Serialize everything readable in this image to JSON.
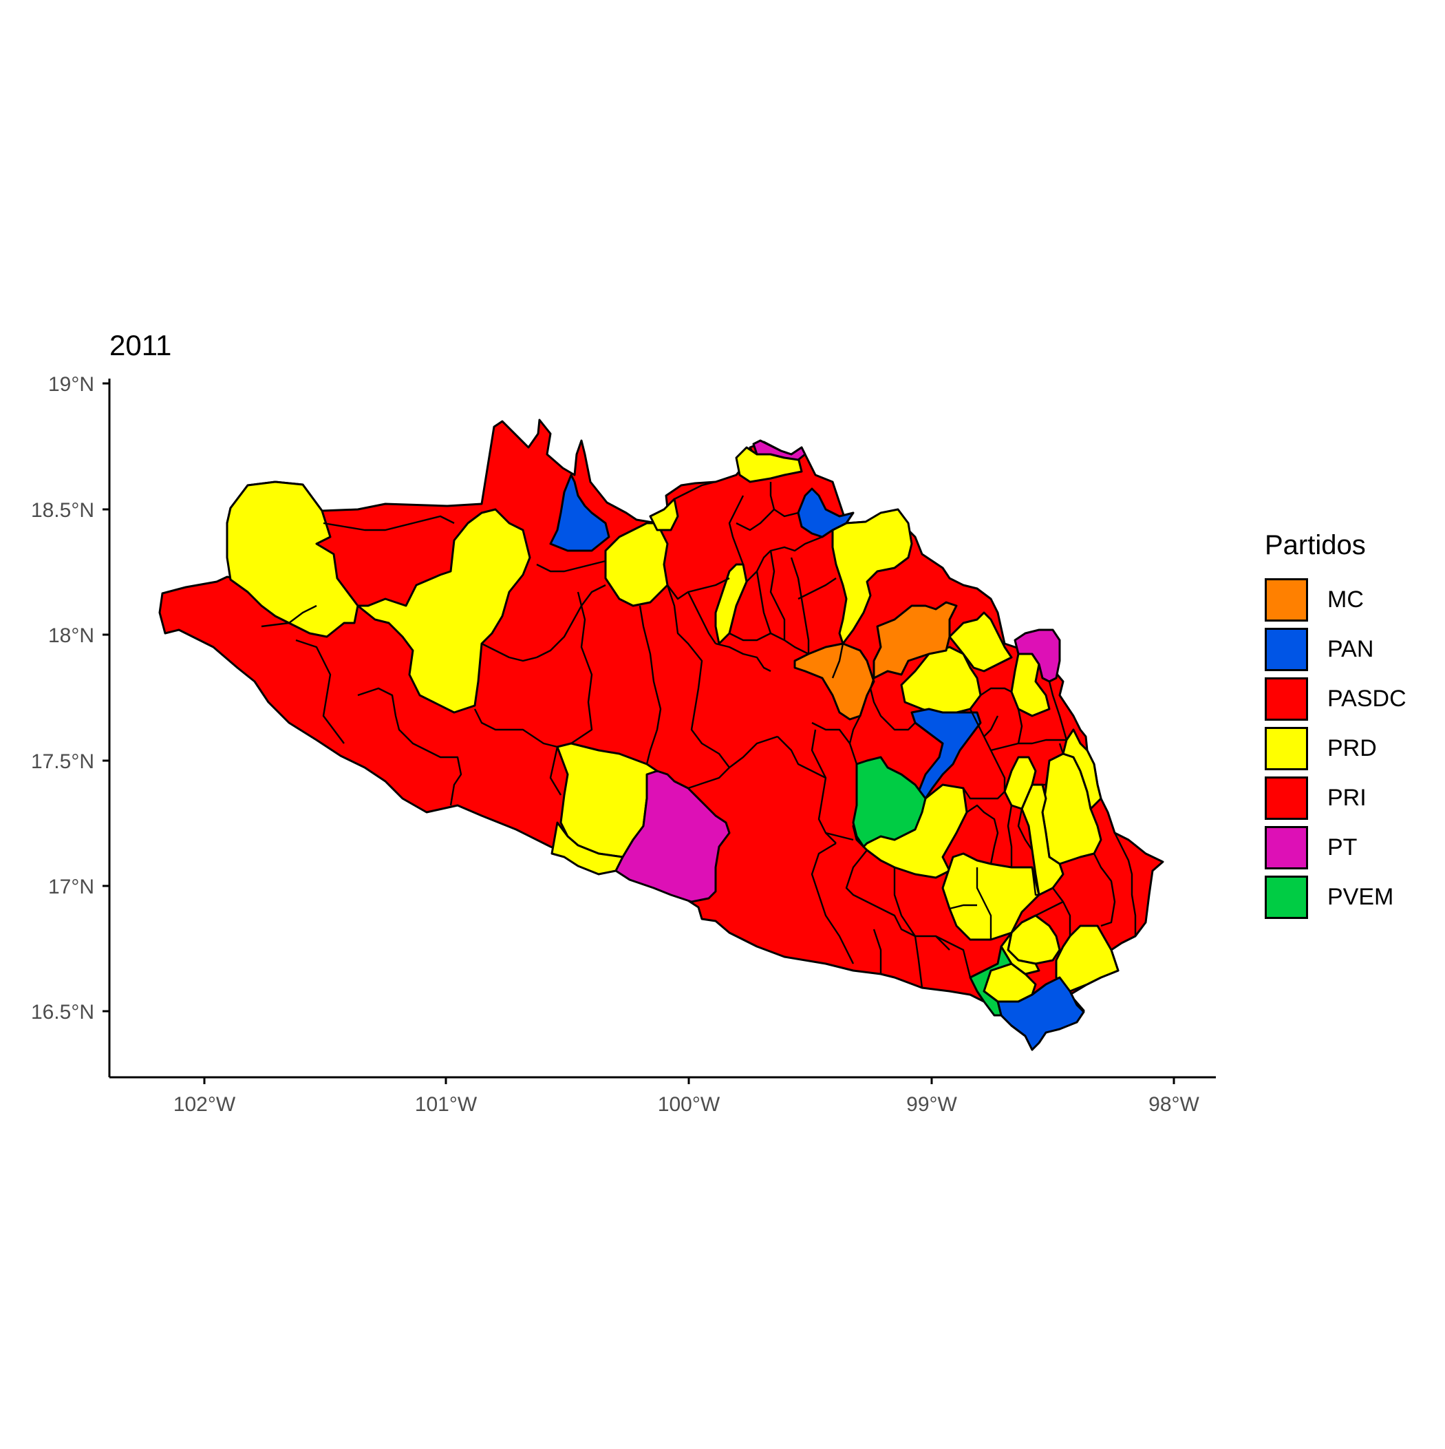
{
  "title": "2011",
  "axes": {
    "x_ticks": [
      "102°W",
      "101°W",
      "100°W",
      "99°W",
      "98°W"
    ],
    "y_ticks": [
      "19°N",
      "18.5°N",
      "18°N",
      "17.5°N",
      "17°N",
      "16.5°N"
    ]
  },
  "legend": {
    "title": "Partidos",
    "items": [
      {
        "label": "MC",
        "color": "#ff8000"
      },
      {
        "label": "PAN",
        "color": "#0055e6"
      },
      {
        "label": "PASDC",
        "color": "#ff0000"
      },
      {
        "label": "PRD",
        "color": "#ffff00"
      },
      {
        "label": "PRI",
        "color": "#ff0000"
      },
      {
        "label": "PT",
        "color": "#dd10b6"
      },
      {
        "label": "PVEM",
        "color": "#00cc44"
      }
    ]
  },
  "chart_data": {
    "type": "choropleth",
    "title": "2011",
    "xlim": [
      -102.4,
      -97.8
    ],
    "ylim": [
      16.25,
      19.02
    ],
    "x_ticks": [
      -102,
      -101,
      -100,
      -99,
      -98
    ],
    "y_ticks": [
      19,
      18.5,
      18,
      17.5,
      17,
      16.5
    ],
    "legend_position": "right",
    "grid": false,
    "regions_by_party": {
      "MC": 2,
      "PAN": 4,
      "PRD": 20,
      "PT": 3,
      "PVEM": 2
    }
  }
}
